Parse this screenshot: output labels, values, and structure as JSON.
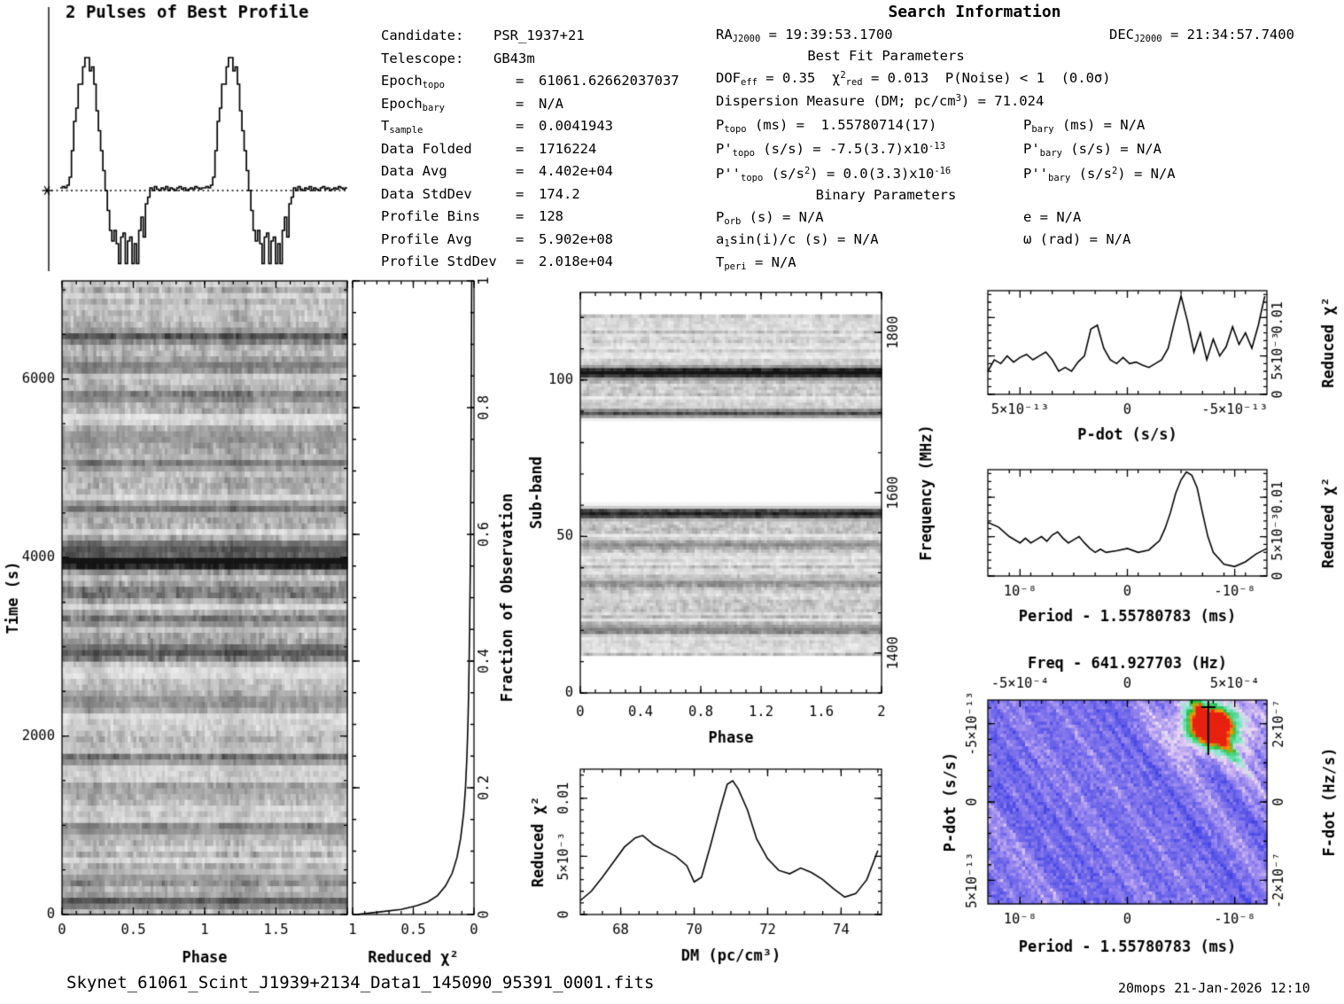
{
  "candidate": {
    "rows": [
      {
        "label": [
          {
            "t": "Candidate:"
          }
        ],
        "eq": "",
        "value": "PSR_1937+21"
      },
      {
        "label": [
          {
            "t": "Telescope:"
          }
        ],
        "eq": "",
        "value": "GB43m"
      },
      {
        "label": [
          {
            "t": "Epoch"
          },
          {
            "t": "topo",
            "m": "sub"
          }
        ],
        "eq": "=",
        "value": "61061.62662037037"
      },
      {
        "label": [
          {
            "t": "Epoch"
          },
          {
            "t": "bary",
            "m": "sub"
          }
        ],
        "eq": "=",
        "value": "N/A"
      },
      {
        "label": [
          {
            "t": "T"
          },
          {
            "t": "sample",
            "m": "sub"
          }
        ],
        "eq": "=",
        "value": "0.0041943"
      },
      {
        "label": [
          {
            "t": "Data Folded"
          }
        ],
        "eq": "=",
        "value": "1716224"
      },
      {
        "label": [
          {
            "t": "Data Avg"
          }
        ],
        "eq": "=",
        "value": "4.402e+04"
      },
      {
        "label": [
          {
            "t": "Data StdDev"
          }
        ],
        "eq": "=",
        "value": "174.2"
      },
      {
        "label": [
          {
            "t": "Profile Bins"
          }
        ],
        "eq": "=",
        "value": "128"
      },
      {
        "label": [
          {
            "t": "Profile Avg"
          }
        ],
        "eq": "=",
        "value": "5.902e+08"
      },
      {
        "label": [
          {
            "t": "Profile StdDev"
          }
        ],
        "eq": "=",
        "value": "2.018e+04"
      }
    ]
  },
  "search": {
    "title": "Search Information",
    "ra": [
      {
        "t": "RA"
      },
      {
        "t": "J2000",
        "m": "sub"
      },
      {
        "t": " = 19:39:53.1700"
      }
    ],
    "dec": [
      {
        "t": "DEC"
      },
      {
        "t": "J2000",
        "m": "sub"
      },
      {
        "t": " = 21:34:57.7400"
      }
    ],
    "best_fit_header": "Best Fit Parameters",
    "dof": [
      {
        "t": "DOF"
      },
      {
        "t": "eff",
        "m": "sub"
      },
      {
        "t": " = 0.35  "
      },
      {
        "t": "χ"
      },
      {
        "t": "2",
        "m": "sup"
      },
      {
        "t": "red",
        "m": "sub"
      },
      {
        "t": " = 0.013  P(Noise) < 1  (0.0σ)"
      }
    ],
    "dm_line": [
      {
        "t": "Dispersion Measure (DM; pc/cm"
      },
      {
        "t": "3",
        "m": "sup"
      },
      {
        "t": ") = 71.024"
      }
    ],
    "p_topo": [
      {
        "t": "P"
      },
      {
        "t": "topo",
        "m": "sub"
      },
      {
        "t": " (ms) =  1.55780714(17)"
      }
    ],
    "p_bary": [
      {
        "t": "P"
      },
      {
        "t": "bary",
        "m": "sub"
      },
      {
        "t": " (ms) = N/A"
      }
    ],
    "pd_topo": [
      {
        "t": "P'"
      },
      {
        "t": "topo",
        "m": "sub"
      },
      {
        "t": " (s/s) = -7.5(3.7)x10"
      },
      {
        "t": "-13",
        "m": "sup"
      }
    ],
    "pd_bary": [
      {
        "t": "P'"
      },
      {
        "t": "bary",
        "m": "sub"
      },
      {
        "t": " (s/s) = N/A"
      }
    ],
    "pdd_topo": [
      {
        "t": "P''"
      },
      {
        "t": "topo",
        "m": "sub"
      },
      {
        "t": " (s/s"
      },
      {
        "t": "2",
        "m": "sup"
      },
      {
        "t": ") = 0.0(3.3)x10"
      },
      {
        "t": "-16",
        "m": "sup"
      }
    ],
    "pdd_bary": [
      {
        "t": "P''"
      },
      {
        "t": "bary",
        "m": "sub"
      },
      {
        "t": " (s/s"
      },
      {
        "t": "2",
        "m": "sup"
      },
      {
        "t": ") = N/A"
      }
    ],
    "binary_header": "Binary Parameters",
    "p_orb": [
      {
        "t": "P"
      },
      {
        "t": "orb",
        "m": "sub"
      },
      {
        "t": " (s) = N/A"
      }
    ],
    "ecc": [
      {
        "t": "e = N/A"
      }
    ],
    "asini": [
      {
        "t": "a"
      },
      {
        "t": "1",
        "m": "sub"
      },
      {
        "t": "sin(i)/c (s) = N/A"
      }
    ],
    "omega": [
      {
        "t": "ω (rad) = N/A"
      }
    ],
    "t_peri": [
      {
        "t": "T"
      },
      {
        "t": "peri",
        "m": "sub"
      },
      {
        "t": " = N/A"
      }
    ]
  },
  "footer": {
    "filename": "Skynet_61061_Scint_J1939+2134_Data1_145090_95391_0001.fits",
    "timestamp": "20mops 21-Jan-2026 12:10"
  },
  "chart_data": [
    {
      "id": "best_profile",
      "type": "line",
      "title": "2 Pulses of Best Profile",
      "periods": 2,
      "bins_per_period": 64,
      "baseline_level": 0,
      "profile": [
        0.02,
        0.03,
        0.02,
        0.04,
        0.1,
        0.3,
        0.52,
        0.62,
        0.8,
        0.8,
        0.93,
        1.0,
        1.0,
        0.9,
        0.93,
        0.8,
        0.6,
        0.45,
        0.3,
        0.15,
        0.0,
        -0.15,
        -0.3,
        -0.38,
        -0.3,
        -0.4,
        -0.55,
        -0.35,
        -0.32,
        -0.55,
        -0.38,
        -0.35,
        -0.55,
        -0.4,
        -0.55,
        -0.3,
        -0.2,
        -0.35,
        -0.1,
        -0.05,
        0.02,
        0.0,
        0.03,
        0.01,
        0.0,
        0.02,
        0.01,
        0.03,
        0.0,
        0.02,
        0.01,
        0.0,
        0.02,
        0.03,
        0.01,
        0.02,
        0.0,
        0.01,
        0.02,
        0.01,
        0.03,
        0.02,
        0.01,
        0.02
      ]
    },
    {
      "id": "time_vs_phase",
      "type": "heatmap",
      "xlabel": "Phase",
      "ylabel": "Time (s)",
      "xlim": [
        0,
        2
      ],
      "ylim": [
        0,
        7100
      ],
      "xticks": [
        0,
        0.5,
        1,
        1.5,
        2
      ],
      "xtick_labels": [
        "0",
        "0.5",
        "1",
        "1.5",
        ""
      ],
      "yticks": [
        0,
        2000,
        4000,
        6000
      ],
      "ytick_labels": [
        "0",
        "2000",
        "4000",
        "6000"
      ],
      "rows": 110,
      "cols": 100,
      "seed": 11,
      "dark_rows": [
        {
          "t": 150,
          "a": 0.5
        },
        {
          "t": 420,
          "a": 0.25
        },
        {
          "t": 950,
          "a": 0.3
        },
        {
          "t": 1400,
          "a": 0.22
        },
        {
          "t": 1750,
          "a": 0.28
        },
        {
          "t": 2400,
          "a": 0.3
        },
        {
          "t": 2950,
          "a": 0.52
        },
        {
          "t": 3300,
          "a": 0.25
        },
        {
          "t": 3620,
          "a": 0.3
        },
        {
          "t": 3950,
          "a": 0.9
        },
        {
          "t": 4120,
          "a": 0.55
        },
        {
          "t": 4560,
          "a": 0.35
        },
        {
          "t": 5050,
          "a": 0.28
        },
        {
          "t": 5350,
          "a": 0.32
        },
        {
          "t": 5800,
          "a": 0.3
        },
        {
          "t": 6150,
          "a": 0.35
        },
        {
          "t": 6480,
          "a": 0.4
        }
      ],
      "stripes": [
        {
          "phase": 0.22,
          "a": 0.07
        },
        {
          "phase": 1.22,
          "a": 0.07
        }
      ]
    },
    {
      "id": "chi2_vs_fraction",
      "type": "line",
      "xlabel": "Reduced χ²",
      "x_reversed": true,
      "xlim": [
        1,
        0
      ],
      "xticks": [
        1,
        0.5,
        0
      ],
      "xtick_labels": [
        "1",
        "0.5",
        "0"
      ],
      "y2label": "Fraction of Observation",
      "y2ticks": [
        0,
        0.2,
        0.4,
        0.6,
        0.8,
        1
      ],
      "y2tick_labels": [
        "0",
        "0.2",
        "0.4",
        "0.6",
        "0.8",
        "1"
      ],
      "fraction": [
        0,
        0.004,
        0.008,
        0.014,
        0.02,
        0.03,
        0.045,
        0.065,
        0.09,
        0.12,
        0.16,
        0.2,
        0.25,
        0.3,
        0.35,
        0.4,
        0.45,
        0.5,
        0.55,
        0.6,
        0.65,
        0.7,
        0.75,
        0.8,
        0.85,
        0.9,
        0.95,
        1.0
      ],
      "chi2": [
        0.97,
        0.78,
        0.6,
        0.47,
        0.38,
        0.3,
        0.235,
        0.18,
        0.14,
        0.11,
        0.085,
        0.07,
        0.058,
        0.05,
        0.044,
        0.04,
        0.036,
        0.033,
        0.03,
        0.028,
        0.027,
        0.025,
        0.024,
        0.023,
        0.022,
        0.021,
        0.02,
        0.019
      ]
    },
    {
      "id": "subband_vs_phase",
      "type": "heatmap",
      "xlabel": "Phase",
      "ylabel": "Sub-band",
      "y2label": "Frequency (MHz)",
      "xlim": [
        0,
        2
      ],
      "ylim": [
        0,
        128
      ],
      "freq_lim": [
        1350,
        1850
      ],
      "xticks": [
        0,
        0.4,
        0.8,
        1.2,
        1.6,
        2
      ],
      "xtick_labels": [
        "0",
        "0.4",
        "0.8",
        "1.2",
        "1.6",
        "2"
      ],
      "yticks": [
        0,
        50,
        100
      ],
      "ytick_labels": [
        "0",
        "50",
        "100"
      ],
      "freq_ticks": [
        1400,
        1600,
        1800
      ],
      "freq_tick_labels": [
        "1400",
        "1600",
        "1800"
      ],
      "rows": 128,
      "cols": 100,
      "seed": 23,
      "bands": [
        {
          "lo": 88,
          "hi": 121,
          "a": 0.3
        },
        {
          "lo": 12,
          "hi": 59,
          "a": 0.32
        }
      ],
      "dark_rows": [
        {
          "row": 102,
          "a": 0.9,
          "w": 1.5
        },
        {
          "row": 89,
          "a": 0.5,
          "w": 1.2
        },
        {
          "row": 57,
          "a": 0.75,
          "w": 1.5
        },
        {
          "row": 20,
          "a": 0.4,
          "w": 1.2
        },
        {
          "row": 35,
          "a": 0.3,
          "w": 1
        },
        {
          "row": 47,
          "a": 0.3,
          "w": 1
        }
      ]
    },
    {
      "id": "chi2_vs_dm",
      "type": "line",
      "xlabel": "DM (pc/cm³)",
      "ylabel": "Reduced χ²",
      "xlim": [
        66.9,
        75.1
      ],
      "ylim": [
        0,
        0.0125
      ],
      "xticks": [
        68,
        70,
        72,
        74
      ],
      "xtick_labels": [
        "68",
        "70",
        "72",
        "74"
      ],
      "yticks": [
        0,
        0.005,
        0.01
      ],
      "ytick_labels": [
        "0",
        "5×10⁻³",
        "0.01"
      ],
      "x": [
        66.9,
        67.2,
        67.5,
        67.8,
        68.1,
        68.4,
        68.6,
        68.9,
        69.2,
        69.5,
        69.8,
        70.0,
        70.2,
        70.45,
        70.7,
        70.9,
        71.05,
        71.2,
        71.45,
        71.7,
        72.0,
        72.3,
        72.6,
        72.9,
        73.2,
        73.5,
        73.8,
        74.1,
        74.4,
        74.7,
        75.0
      ],
      "y": [
        0.0012,
        0.002,
        0.0032,
        0.0045,
        0.0058,
        0.0066,
        0.0068,
        0.006,
        0.0055,
        0.005,
        0.0042,
        0.0028,
        0.0032,
        0.006,
        0.009,
        0.0112,
        0.0115,
        0.0108,
        0.009,
        0.0065,
        0.0048,
        0.0038,
        0.0035,
        0.004,
        0.0036,
        0.003,
        0.0022,
        0.0015,
        0.0018,
        0.003,
        0.0055
      ]
    },
    {
      "id": "chi2_vs_pdot",
      "type": "line",
      "xlabel": "P-dot (s/s)",
      "y2label": "Reduced χ²",
      "x_unit": "1e-13",
      "xlim": [
        6.5,
        -6.5
      ],
      "ylim": [
        0,
        0.0135
      ],
      "xticks": [
        5,
        0,
        -5
      ],
      "xtick_labels": [
        "5×10⁻¹³",
        "0",
        "-5×10⁻¹³"
      ],
      "yticks": [
        0,
        0.005,
        0.01
      ],
      "ytick_labels": [
        "0",
        "5×10⁻³",
        "0.01"
      ],
      "x": [
        6.5,
        6.2,
        5.9,
        5.6,
        5.3,
        5.0,
        4.7,
        4.4,
        4.1,
        3.8,
        3.5,
        3.2,
        2.9,
        2.6,
        2.3,
        2.0,
        1.7,
        1.4,
        1.1,
        0.8,
        0.5,
        0.2,
        -0.1,
        -0.4,
        -0.7,
        -1.0,
        -1.3,
        -1.6,
        -1.9,
        -2.2,
        -2.5,
        -2.8,
        -3.1,
        -3.4,
        -3.7,
        -4.0,
        -4.3,
        -4.6,
        -4.9,
        -5.2,
        -5.5,
        -5.8,
        -6.1,
        -6.4
      ],
      "y": [
        0.003,
        0.0045,
        0.004,
        0.005,
        0.0042,
        0.0048,
        0.0052,
        0.0045,
        0.005,
        0.0055,
        0.0045,
        0.003,
        0.0035,
        0.003,
        0.0042,
        0.005,
        0.0085,
        0.009,
        0.006,
        0.0045,
        0.004,
        0.0048,
        0.004,
        0.0042,
        0.0038,
        0.0035,
        0.004,
        0.0045,
        0.006,
        0.0095,
        0.0128,
        0.0095,
        0.0055,
        0.008,
        0.0045,
        0.0072,
        0.005,
        0.0062,
        0.0088,
        0.0065,
        0.008,
        0.006,
        0.009,
        0.0128
      ]
    },
    {
      "id": "chi2_vs_period",
      "type": "line",
      "xlabel": "Period - 1.55780783 (ms)",
      "y2label": "Reduced χ²",
      "x_unit": "1e-8",
      "xlim": [
        1.3,
        -1.3
      ],
      "ylim": [
        0,
        0.0135
      ],
      "xticks": [
        1,
        0,
        -1
      ],
      "xtick_labels": [
        "10⁻⁸",
        "0",
        "-10⁻⁸"
      ],
      "yticks": [
        0,
        0.005,
        0.01
      ],
      "ytick_labels": [
        "0",
        "5×10⁻³",
        "0.01"
      ],
      "x": [
        1.3,
        1.2,
        1.1,
        1.0,
        0.95,
        0.9,
        0.85,
        0.8,
        0.75,
        0.7,
        0.65,
        0.6,
        0.55,
        0.5,
        0.45,
        0.4,
        0.35,
        0.3,
        0.25,
        0.2,
        0.1,
        0.0,
        -0.1,
        -0.2,
        -0.3,
        -0.35,
        -0.4,
        -0.45,
        -0.5,
        -0.55,
        -0.6,
        -0.65,
        -0.7,
        -0.75,
        -0.8,
        -0.9,
        -1.0,
        -1.1,
        -1.2,
        -1.3
      ],
      "y": [
        0.0068,
        0.0062,
        0.005,
        0.0042,
        0.0048,
        0.0042,
        0.0046,
        0.005,
        0.0044,
        0.0052,
        0.0056,
        0.0048,
        0.0042,
        0.0046,
        0.005,
        0.0042,
        0.0035,
        0.003,
        0.0034,
        0.003,
        0.0032,
        0.0035,
        0.003,
        0.0033,
        0.0045,
        0.006,
        0.008,
        0.0105,
        0.0122,
        0.0132,
        0.0128,
        0.0112,
        0.008,
        0.005,
        0.003,
        0.0015,
        0.0012,
        0.0018,
        0.0028,
        0.0035
      ]
    },
    {
      "id": "pdot_vs_period_map",
      "type": "heatmap",
      "title": "Freq - 641.927703 (Hz)",
      "top_ticks": [
        -5,
        0,
        5
      ],
      "top_tick_labels": [
        "-5×10⁻⁴",
        "0",
        "5×10⁻⁴"
      ],
      "top_unit": "1e-4",
      "bottom_label": "Period - 1.55780783 (ms)",
      "bottom_ticks": [
        1,
        0,
        -1
      ],
      "bottom_tick_labels": [
        "10⁻⁸",
        "0",
        "-10⁻⁸"
      ],
      "left_label": "P-dot (s/s)",
      "left_ticks": [
        -5,
        0,
        5
      ],
      "left_tick_labels": [
        "-5×10⁻¹³",
        "0",
        "5×10⁻¹³"
      ],
      "right_label": "F-dot (Hz/s)",
      "right_ticks": [
        2,
        0,
        -2
      ],
      "right_tick_labels": [
        "2×10⁻⁷",
        "0",
        "-2×10⁻⁷"
      ],
      "rows": 66,
      "cols": 90,
      "seed": 5,
      "hotspot": {
        "x": 0.8,
        "y": 0.13
      },
      "marker": {
        "x": 0.79,
        "y": 0.035,
        "tail": 0.27
      },
      "colormap": [
        [
          0.0,
          "#1a1acc"
        ],
        [
          0.3,
          "#4444e6"
        ],
        [
          0.45,
          "#9988ee"
        ],
        [
          0.56,
          "#f0d8f4"
        ],
        [
          0.66,
          "#7ae8c8"
        ],
        [
          0.78,
          "#1fc040"
        ],
        [
          0.9,
          "#ff9900"
        ],
        [
          1.0,
          "#e82010"
        ]
      ]
    }
  ]
}
